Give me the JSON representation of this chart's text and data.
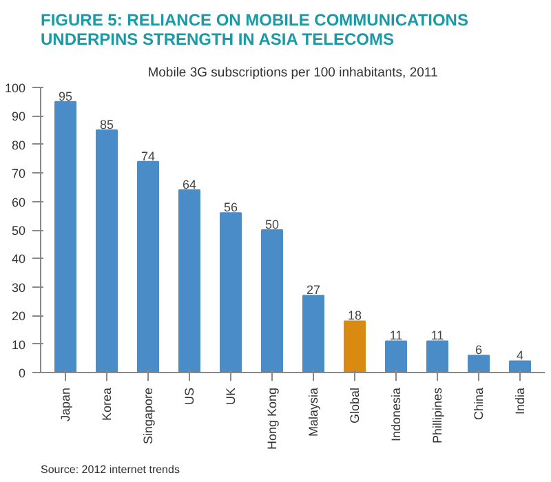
{
  "chart_data": {
    "type": "bar",
    "title": "FIGURE 5: RELIANCE ON MOBILE COMMUNICATIONS UNDERPINS STRENGTH IN ASIA TELECOMS",
    "subtitle": "Mobile 3G subscriptions per 100 inhabitants, 2011",
    "categories": [
      "Japan",
      "Korea",
      "Singapore",
      "US",
      "UK",
      "Hong Kong",
      "Malaysia",
      "Global",
      "Indonesia",
      "Phillipines",
      "China",
      "India"
    ],
    "values": [
      95,
      85,
      74,
      64,
      56,
      50,
      27,
      18,
      11,
      11,
      6,
      4
    ],
    "colors": [
      "#4a8cc7",
      "#4a8cc7",
      "#4a8cc7",
      "#4a8cc7",
      "#4a8cc7",
      "#4a8cc7",
      "#4a8cc7",
      "#d98a10",
      "#4a8cc7",
      "#4a8cc7",
      "#4a8cc7",
      "#4a8cc7"
    ],
    "ylim": [
      0,
      100
    ],
    "yticks": [
      0,
      10,
      20,
      30,
      40,
      50,
      60,
      70,
      80,
      90,
      100
    ],
    "grid": false,
    "data_labels": true,
    "annotations": [
      "Source:  2012 internet trends"
    ]
  }
}
